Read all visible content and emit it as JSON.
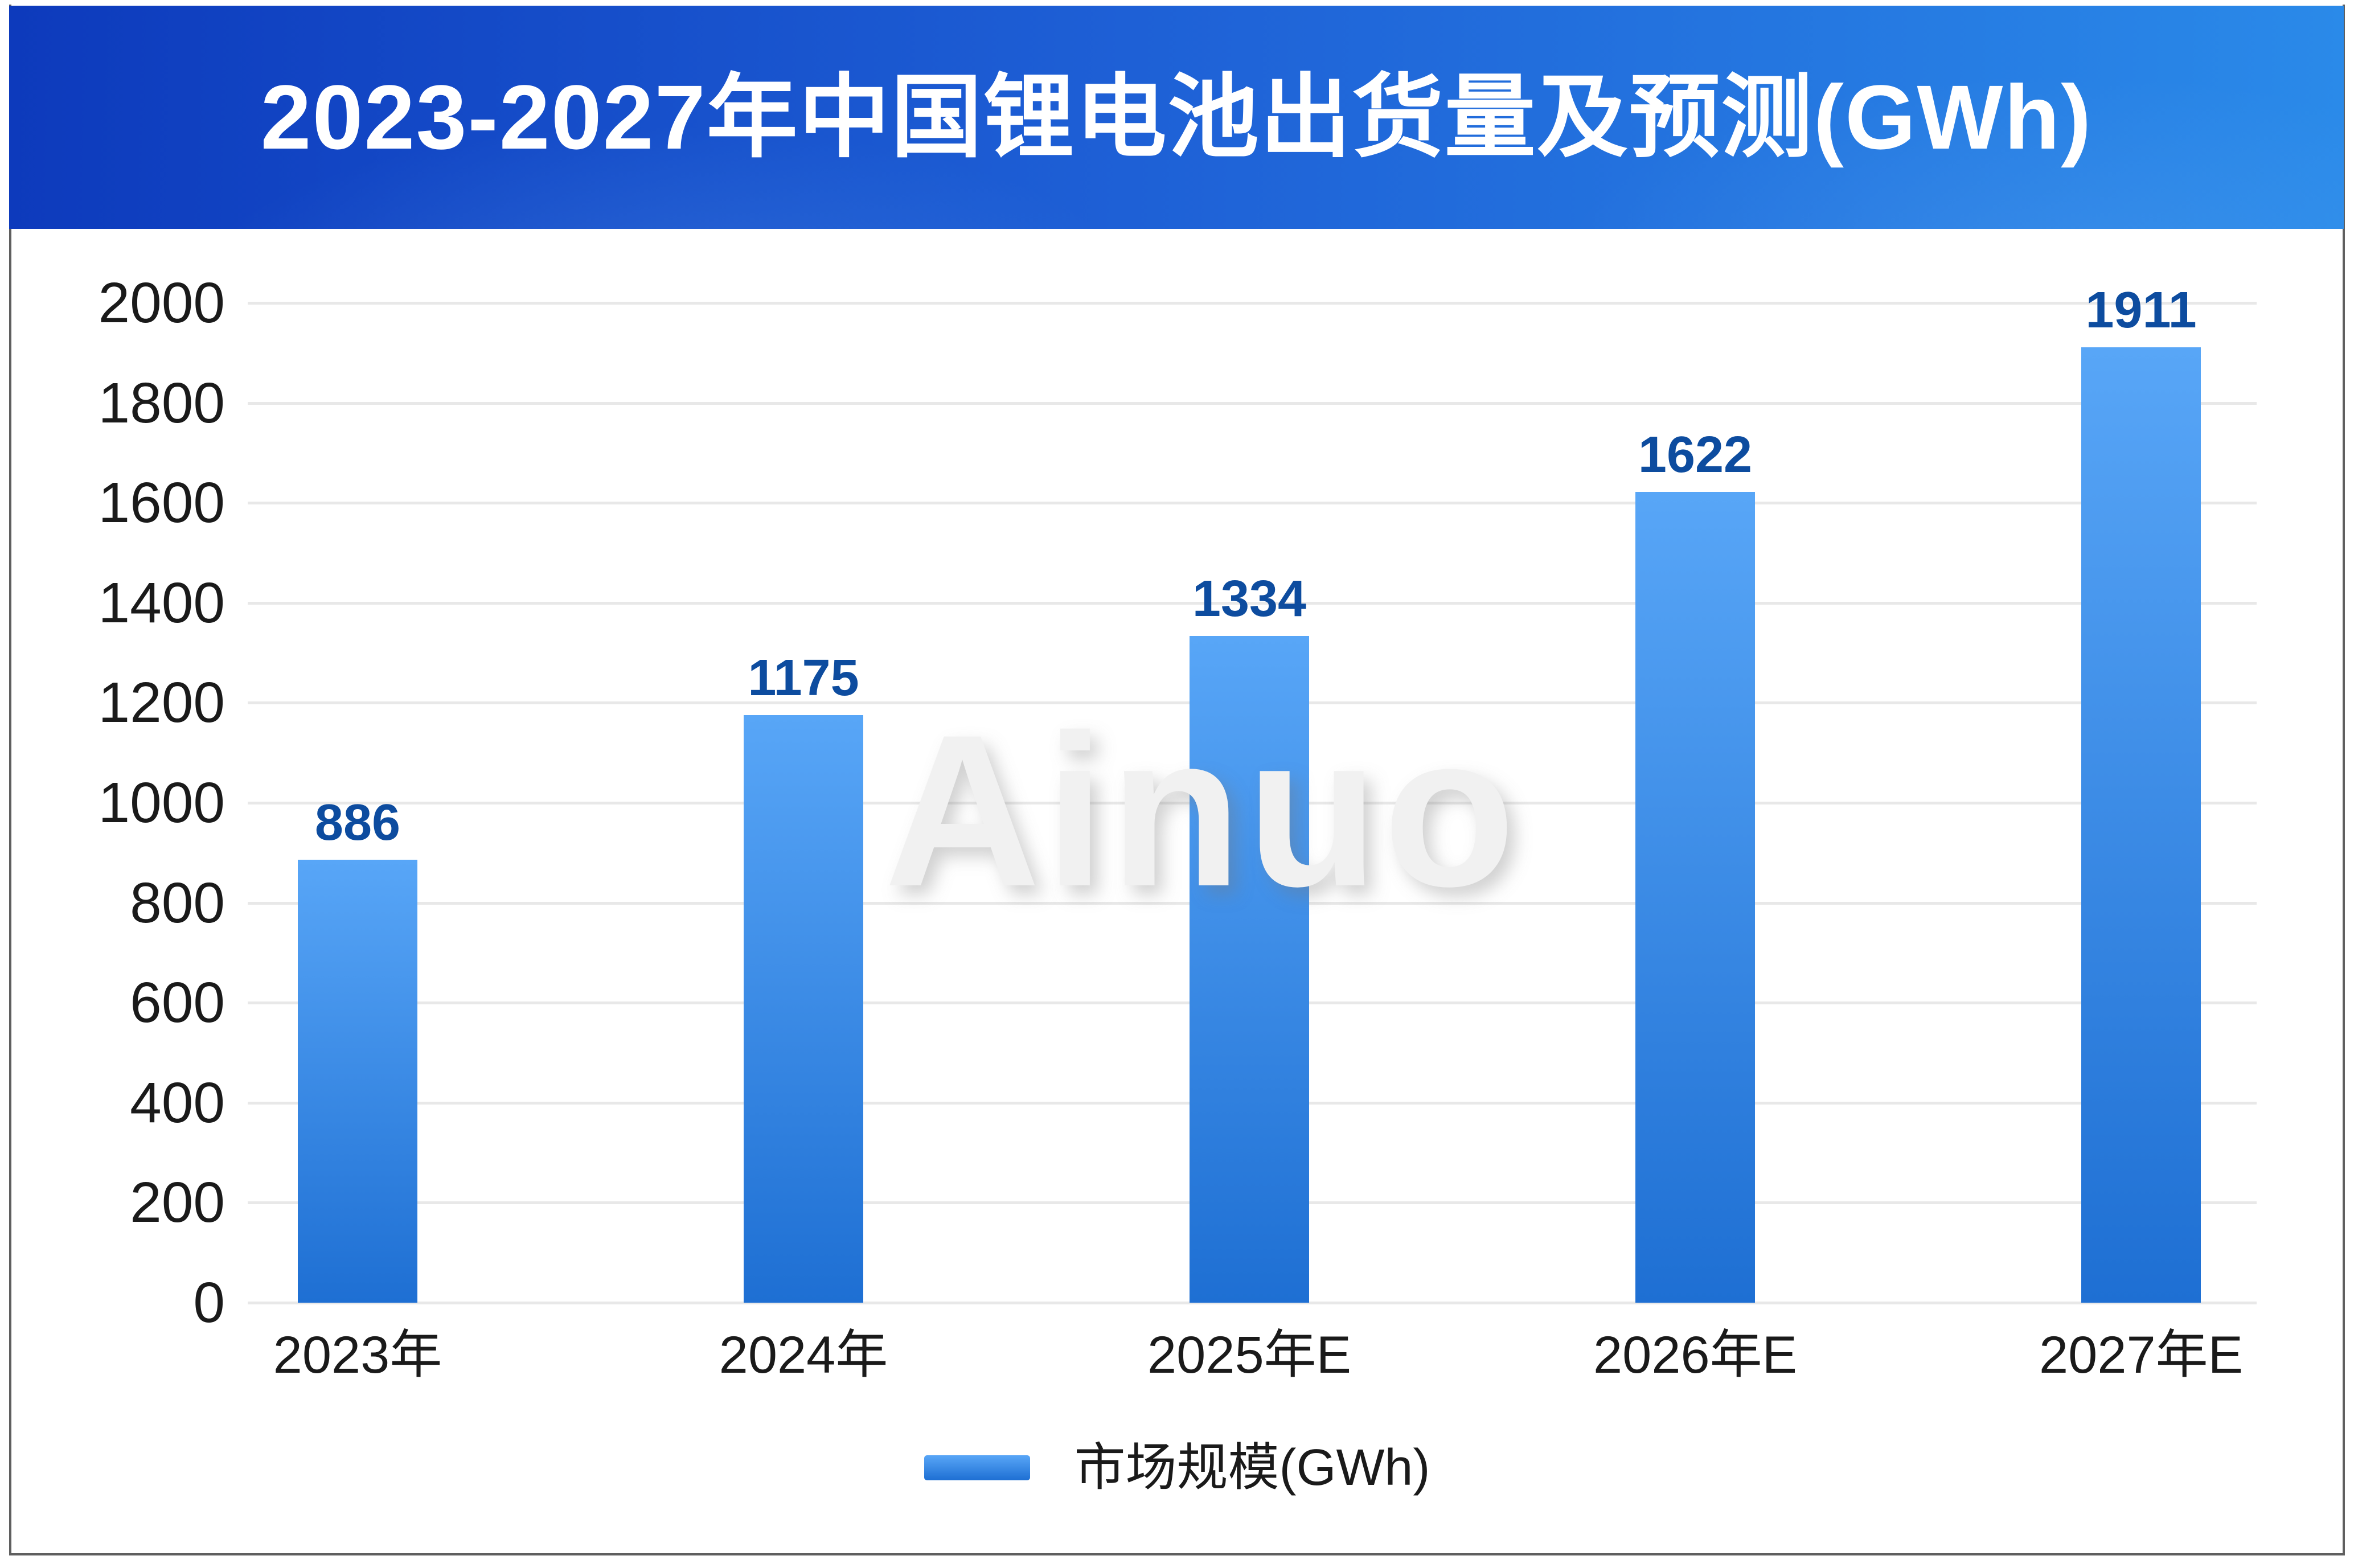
{
  "header": {
    "title": "2023-2027年中国锂电池出货量及预测(GWh)"
  },
  "watermark_text": "Ainuo",
  "legend": {
    "label": "市场规模(GWh)"
  },
  "chart_data": {
    "type": "bar",
    "title": "2023-2027年中国锂电池出货量及预测(GWh)",
    "categories": [
      "2023年",
      "2024年",
      "2025年E",
      "2026年E",
      "2027年E"
    ],
    "series": [
      {
        "name": "市场规模(GWh)",
        "values": [
          886,
          1175,
          1334,
          1622,
          1911
        ]
      }
    ],
    "value_labels": [
      "886",
      "1175",
      "1334",
      "1622",
      "1911"
    ],
    "xlabel": "",
    "ylabel": "",
    "ylim": [
      0,
      2000
    ],
    "ytick_step": 200,
    "ytick_labels": [
      "0",
      "200",
      "400",
      "600",
      "800",
      "1000",
      "1200",
      "1400",
      "1600",
      "1800",
      "2000"
    ],
    "grid": true,
    "legend_position": "bottom",
    "legend_entries": [
      "市场规模(GWh)"
    ]
  },
  "colors": {
    "background": "#ffffff",
    "banner_left": "#0d3abc",
    "banner_mid": "#1e60d6",
    "banner_right": "#2a8ae9",
    "title_text": "#ffffff",
    "bar_top": "#58a6f7",
    "bar_bottom": "#1e6fd3",
    "value_label": "#0d4c9f",
    "axis_label": "#1a1a1a",
    "grid_line": "#e8e8e8",
    "watermark": "#f1f1f1",
    "frame_border": "#5f5f5f"
  }
}
